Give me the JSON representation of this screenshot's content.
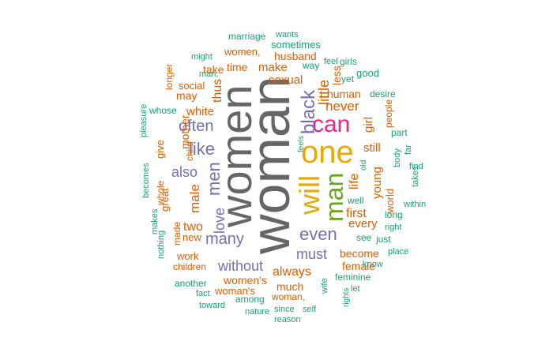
{
  "palette": {
    "gray": "#666666",
    "gold": "#e6ab02",
    "pink": "#e7298a",
    "green": "#66a61e",
    "purple": "#7570b3",
    "orange": "#d95f02",
    "teal": "#1b9e77"
  },
  "words": [
    {
      "text": "woman",
      "color": "gray",
      "rotation": "vertical"
    },
    {
      "text": "women",
      "color": "gray",
      "rotation": "vertical"
    },
    {
      "text": "one",
      "color": "gold",
      "rotation": "horizontal"
    },
    {
      "text": "will",
      "color": "gold",
      "rotation": "vertical"
    },
    {
      "text": "can",
      "color": "pink",
      "rotation": "horizontal"
    },
    {
      "text": "man",
      "color": "green",
      "rotation": "vertical"
    },
    {
      "text": "black",
      "color": "purple",
      "rotation": "vertical"
    },
    {
      "text": "even",
      "color": "purple",
      "rotation": "horizontal"
    },
    {
      "text": "like",
      "color": "purple",
      "rotation": "horizontal"
    },
    {
      "text": "often",
      "color": "purple",
      "rotation": "horizontal"
    },
    {
      "text": "men",
      "color": "purple",
      "rotation": "vertical"
    },
    {
      "text": "many",
      "color": "purple",
      "rotation": "horizontal"
    },
    {
      "text": "without",
      "color": "purple",
      "rotation": "horizontal"
    },
    {
      "text": "also",
      "color": "purple",
      "rotation": "horizontal"
    },
    {
      "text": "must",
      "color": "purple",
      "rotation": "horizontal"
    },
    {
      "text": "love",
      "color": "purple",
      "rotation": "vertical"
    },
    {
      "text": "little",
      "color": "orange",
      "rotation": "vertical"
    },
    {
      "text": "never",
      "color": "orange",
      "rotation": "horizontal"
    },
    {
      "text": "sexual",
      "color": "orange",
      "rotation": "horizontal"
    },
    {
      "text": "make",
      "color": "orange",
      "rotation": "horizontal"
    },
    {
      "text": "husband",
      "color": "orange",
      "rotation": "horizontal"
    },
    {
      "text": "women,",
      "color": "orange",
      "rotation": "horizontal"
    },
    {
      "text": "time",
      "color": "orange",
      "rotation": "horizontal"
    },
    {
      "text": "take",
      "color": "orange",
      "rotation": "horizontal"
    },
    {
      "text": "thus",
      "color": "orange",
      "rotation": "vertical"
    },
    {
      "text": "white",
      "color": "orange",
      "rotation": "horizontal"
    },
    {
      "text": "may",
      "color": "orange",
      "rotation": "horizontal"
    },
    {
      "text": "mother",
      "color": "orange",
      "rotation": "vertical"
    },
    {
      "text": "male",
      "color": "orange",
      "rotation": "vertical"
    },
    {
      "text": "two",
      "color": "orange",
      "rotation": "horizontal"
    },
    {
      "text": "human",
      "color": "orange",
      "rotation": "horizontal"
    },
    {
      "text": "less",
      "color": "orange",
      "rotation": "vertical"
    },
    {
      "text": "still",
      "color": "orange",
      "rotation": "horizontal"
    },
    {
      "text": "girl",
      "color": "orange",
      "rotation": "vertical"
    },
    {
      "text": "life",
      "color": "orange",
      "rotation": "vertical"
    },
    {
      "text": "young",
      "color": "orange",
      "rotation": "vertical"
    },
    {
      "text": "first",
      "color": "orange",
      "rotation": "horizontal"
    },
    {
      "text": "every",
      "color": "orange",
      "rotation": "horizontal"
    },
    {
      "text": "always",
      "color": "orange",
      "rotation": "horizontal"
    },
    {
      "text": "female",
      "color": "orange",
      "rotation": "horizontal"
    },
    {
      "text": "become",
      "color": "orange",
      "rotation": "horizontal"
    },
    {
      "text": "women's",
      "color": "orange",
      "rotation": "horizontal"
    },
    {
      "text": "much",
      "color": "orange",
      "rotation": "horizontal"
    },
    {
      "text": "woman's",
      "color": "orange",
      "rotation": "horizontal"
    },
    {
      "text": "woman,",
      "color": "orange",
      "rotation": "horizontal"
    },
    {
      "text": "work",
      "color": "orange",
      "rotation": "horizontal"
    },
    {
      "text": "new",
      "color": "orange",
      "rotation": "horizontal"
    },
    {
      "text": "give",
      "color": "orange",
      "rotation": "vertical"
    },
    {
      "text": "great",
      "color": "orange",
      "rotation": "vertical"
    },
    {
      "text": "made",
      "color": "orange",
      "rotation": "vertical"
    },
    {
      "text": "child",
      "color": "orange",
      "rotation": "vertical"
    },
    {
      "text": "social",
      "color": "orange",
      "rotation": "horizontal"
    },
    {
      "text": "longer",
      "color": "orange",
      "rotation": "vertical"
    },
    {
      "text": "whole",
      "color": "orange",
      "rotation": "vertical"
    },
    {
      "text": "children",
      "color": "orange",
      "rotation": "horizontal"
    },
    {
      "text": "world",
      "color": "orange",
      "rotation": "vertical"
    },
    {
      "text": "people",
      "color": "orange",
      "rotation": "vertical"
    },
    {
      "text": "marriage",
      "color": "teal",
      "rotation": "horizontal"
    },
    {
      "text": "wants",
      "color": "teal",
      "rotation": "horizontal"
    },
    {
      "text": "sometimes",
      "color": "teal",
      "rotation": "horizontal"
    },
    {
      "text": "might",
      "color": "teal",
      "rotation": "horizontal"
    },
    {
      "text": "man,",
      "color": "teal",
      "rotation": "horizontal"
    },
    {
      "text": "way",
      "color": "teal",
      "rotation": "horizontal"
    },
    {
      "text": "feel",
      "color": "teal",
      "rotation": "horizontal"
    },
    {
      "text": "girls",
      "color": "teal",
      "rotation": "horizontal"
    },
    {
      "text": "good",
      "color": "teal",
      "rotation": "horizontal"
    },
    {
      "text": "yet",
      "color": "teal",
      "rotation": "horizontal"
    },
    {
      "text": "desire",
      "color": "teal",
      "rotation": "horizontal"
    },
    {
      "text": "part",
      "color": "teal",
      "rotation": "horizontal"
    },
    {
      "text": "whose",
      "color": "teal",
      "rotation": "horizontal"
    },
    {
      "text": "pleasure",
      "color": "teal",
      "rotation": "vertical"
    },
    {
      "text": "becomes",
      "color": "teal",
      "rotation": "vertical"
    },
    {
      "text": "makes",
      "color": "teal",
      "rotation": "vertical"
    },
    {
      "text": "nothing",
      "color": "teal",
      "rotation": "vertical"
    },
    {
      "text": "feels",
      "color": "teal",
      "rotation": "vertical"
    },
    {
      "text": "old",
      "color": "teal",
      "rotation": "vertical"
    },
    {
      "text": "far",
      "color": "teal",
      "rotation": "vertical"
    },
    {
      "text": "body",
      "color": "teal",
      "rotation": "vertical"
    },
    {
      "text": "find",
      "color": "teal",
      "rotation": "horizontal"
    },
    {
      "text": "takes",
      "color": "teal",
      "rotation": "vertical"
    },
    {
      "text": "within",
      "color": "teal",
      "rotation": "horizontal"
    },
    {
      "text": "well",
      "color": "teal",
      "rotation": "horizontal"
    },
    {
      "text": "long",
      "color": "teal",
      "rotation": "horizontal"
    },
    {
      "text": "right",
      "color": "teal",
      "rotation": "horizontal"
    },
    {
      "text": "see",
      "color": "teal",
      "rotation": "horizontal"
    },
    {
      "text": "just",
      "color": "teal",
      "rotation": "horizontal"
    },
    {
      "text": "place",
      "color": "teal",
      "rotation": "horizontal"
    },
    {
      "text": "know",
      "color": "teal",
      "rotation": "horizontal"
    },
    {
      "text": "feminine",
      "color": "teal",
      "rotation": "horizontal"
    },
    {
      "text": "let",
      "color": "teal",
      "rotation": "horizontal"
    },
    {
      "text": "rights",
      "color": "teal",
      "rotation": "vertical"
    },
    {
      "text": "wife",
      "color": "teal",
      "rotation": "vertical"
    },
    {
      "text": "another",
      "color": "teal",
      "rotation": "horizontal"
    },
    {
      "text": "fact",
      "color": "teal",
      "rotation": "horizontal"
    },
    {
      "text": "among",
      "color": "teal",
      "rotation": "horizontal"
    },
    {
      "text": "toward",
      "color": "teal",
      "rotation": "horizontal"
    },
    {
      "text": "nature",
      "color": "teal",
      "rotation": "horizontal"
    },
    {
      "text": "since",
      "color": "teal",
      "rotation": "horizontal"
    },
    {
      "text": "self",
      "color": "teal",
      "rotation": "horizontal"
    },
    {
      "text": "reason",
      "color": "teal",
      "rotation": "horizontal"
    }
  ]
}
